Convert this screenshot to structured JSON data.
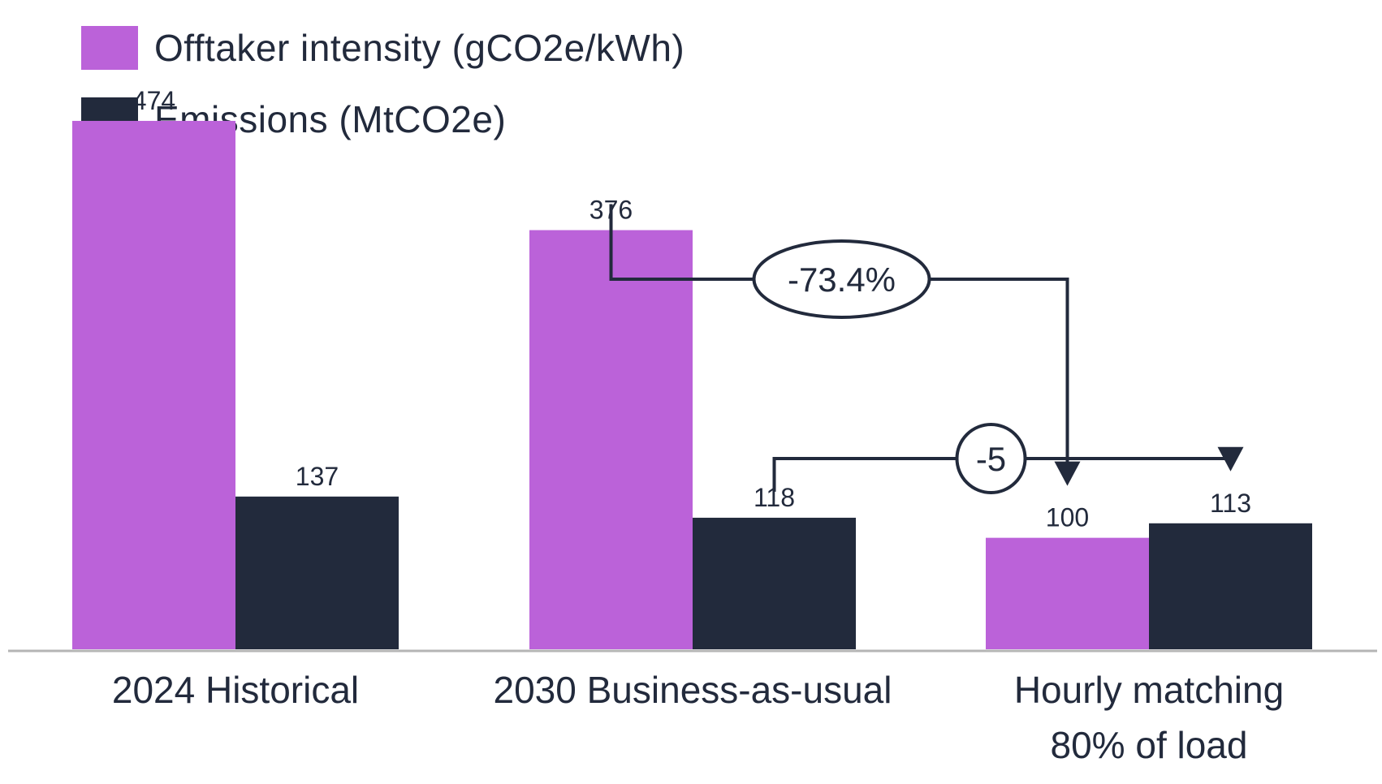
{
  "chart_data": {
    "type": "bar",
    "title": "",
    "xlabel": "",
    "ylabel": "",
    "ylim": [
      0,
      520
    ],
    "legend_position": "top-left",
    "categories": [
      [
        "2024 Historical"
      ],
      [
        "2030 Business-as-usual"
      ],
      [
        "Hourly matching",
        "80% of load"
      ]
    ],
    "series": [
      {
        "name": "Offtaker intensity (gCO2e/kWh)",
        "color": "#bb62d9",
        "values": [
          474,
          376,
          100
        ]
      },
      {
        "name": "Emissions (MtCO2e)",
        "color": "#222a3c",
        "values": [
          137,
          118,
          113
        ]
      }
    ],
    "annotations": [
      {
        "label": "-73.4%",
        "from": {
          "series": 0,
          "category": 1
        },
        "to": {
          "series": 0,
          "category": 2
        }
      },
      {
        "label": "-5",
        "from": {
          "series": 1,
          "category": 1
        },
        "to": {
          "series": 1,
          "category": 2
        }
      }
    ],
    "axis_color": "#b5b5b5"
  }
}
